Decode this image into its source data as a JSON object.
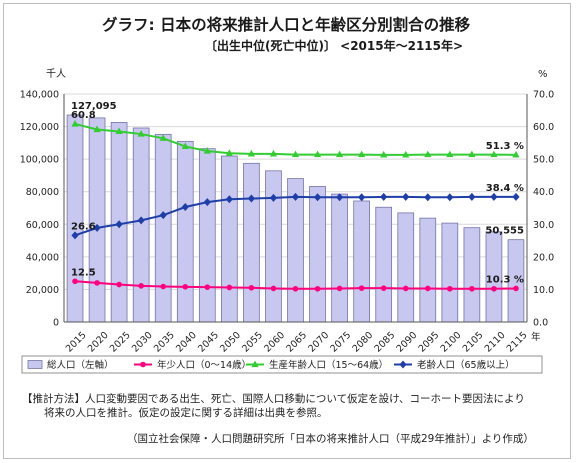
{
  "title": "グラフ:  日本の将来推計人口と年齢区分別割合の推移",
  "subtitle": "〔出生中位(死亡中位)〕 <2015年～2115年>",
  "left_unit": "千人",
  "right_unit": "%",
  "x_unit_suffix": "年",
  "colors": {
    "bar_fill": "#c7c7f0",
    "bar_stroke": "#7474a8",
    "young": "#ff007f",
    "working": "#33cc33",
    "elderly": "#1f3fa8"
  },
  "chart_data": {
    "type": "bar",
    "categories": [
      "2015",
      "2020",
      "2025",
      "2030",
      "2035",
      "2040",
      "2045",
      "2050",
      "2055",
      "2060",
      "2065",
      "2070",
      "2075",
      "2080",
      "2085",
      "2090",
      "2095",
      "2100",
      "2105",
      "2110",
      "2115"
    ],
    "ylim_left": [
      0,
      140000
    ],
    "yticks_left": [
      "0",
      "20,000",
      "40,000",
      "60,000",
      "80,000",
      "100,000",
      "120,000",
      "140,000"
    ],
    "ylim_right": [
      0,
      70
    ],
    "yticks_right": [
      "0.0",
      "10.0",
      "20.0",
      "30.0",
      "40.0",
      "50.0",
      "60.0",
      "70.0"
    ],
    "grid": true,
    "legend_position": "bottom",
    "series": [
      {
        "name": "総人口（左軸）",
        "kind": "bar",
        "axis": "left",
        "values": [
          127095,
          125325,
          122544,
          119125,
          115216,
          110919,
          106421,
          101923,
          97441,
          92840,
          88077,
          83227,
          78543,
          74310,
          70478,
          67002,
          63785,
          60728,
          57909,
          55360,
          50555
        ]
      },
      {
        "name": "年少人口（0～14歳）",
        "kind": "line",
        "axis": "right",
        "marker": "circle",
        "values": [
          12.5,
          12.0,
          11.5,
          11.1,
          10.9,
          10.8,
          10.7,
          10.6,
          10.5,
          10.3,
          10.2,
          10.2,
          10.3,
          10.4,
          10.4,
          10.3,
          10.3,
          10.2,
          10.2,
          10.2,
          10.3
        ]
      },
      {
        "name": "生産年齢人口（15～64歳）",
        "kind": "line",
        "axis": "right",
        "marker": "triangle",
        "values": [
          60.8,
          59.1,
          58.5,
          57.7,
          56.4,
          53.9,
          52.5,
          51.8,
          51.6,
          51.6,
          51.4,
          51.4,
          51.4,
          51.4,
          51.3,
          51.3,
          51.4,
          51.4,
          51.4,
          51.4,
          51.3
        ]
      },
      {
        "name": "老齢人口（65歳以上）",
        "kind": "line",
        "axis": "right",
        "marker": "diamond",
        "values": [
          26.6,
          28.9,
          30.0,
          31.2,
          32.8,
          35.3,
          36.8,
          37.7,
          37.9,
          38.1,
          38.4,
          38.3,
          38.3,
          38.3,
          38.4,
          38.4,
          38.3,
          38.3,
          38.4,
          38.4,
          38.4
        ]
      }
    ],
    "annotations": [
      {
        "text": "127,095",
        "series": 0,
        "index": 0
      },
      {
        "text": "60.8",
        "series": 2,
        "index": 0
      },
      {
        "text": "26.6",
        "series": 3,
        "index": 0
      },
      {
        "text": "12.5",
        "series": 1,
        "index": 0
      },
      {
        "text": "51.3 %",
        "series": 2,
        "index": 20
      },
      {
        "text": "38.4 %",
        "series": 3,
        "index": 20
      },
      {
        "text": "50,555",
        "series": 0,
        "index": 20
      },
      {
        "text": "10.3 %",
        "series": 1,
        "index": 20
      }
    ]
  },
  "notes": {
    "method_line1": "【推計方法】人口変動要因である出生、死亡、国際人口移動について仮定を設け、コーホート要因法により",
    "method_line2": "将来の人口を推計。仮定の設定に関する詳細は出典を参照。",
    "source": "（国立社会保障・人口問題研究所「日本の将来推計人口（平成29年推計）」より作成）"
  }
}
